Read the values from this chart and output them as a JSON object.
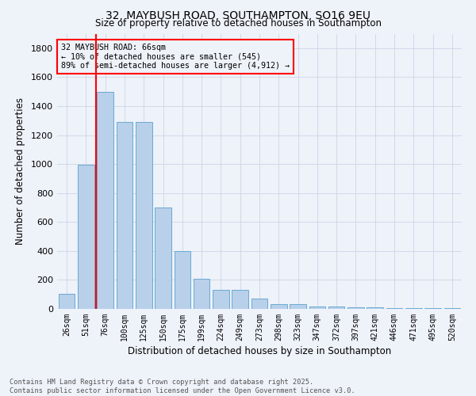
{
  "title": "32, MAYBUSH ROAD, SOUTHAMPTON, SO16 9EU",
  "subtitle": "Size of property relative to detached houses in Southampton",
  "xlabel": "Distribution of detached houses by size in Southampton",
  "ylabel": "Number of detached properties",
  "categories": [
    "26sqm",
    "51sqm",
    "76sqm",
    "100sqm",
    "125sqm",
    "150sqm",
    "175sqm",
    "199sqm",
    "224sqm",
    "249sqm",
    "273sqm",
    "298sqm",
    "323sqm",
    "347sqm",
    "372sqm",
    "397sqm",
    "421sqm",
    "446sqm",
    "471sqm",
    "495sqm",
    "520sqm"
  ],
  "values": [
    105,
    995,
    1500,
    1290,
    1290,
    700,
    400,
    210,
    130,
    130,
    70,
    35,
    35,
    18,
    18,
    10,
    10,
    8,
    8,
    5,
    5
  ],
  "bar_color": "#b8d0ea",
  "bar_edge_color": "#6aaad4",
  "vline_x_index": 1.5,
  "vline_color": "red",
  "annotation_title": "32 MAYBUSH ROAD: 66sqm",
  "annotation_line1": "← 10% of detached houses are smaller (545)",
  "annotation_line2": "89% of semi-detached houses are larger (4,912) →",
  "annotation_box_color": "red",
  "ylim": [
    0,
    1900
  ],
  "yticks": [
    0,
    200,
    400,
    600,
    800,
    1000,
    1200,
    1400,
    1600,
    1800
  ],
  "footer_line1": "Contains HM Land Registry data © Crown copyright and database right 2025.",
  "footer_line2": "Contains public sector information licensed under the Open Government Licence v3.0.",
  "background_color": "#eef2f9",
  "grid_color": "#cdd5e5"
}
